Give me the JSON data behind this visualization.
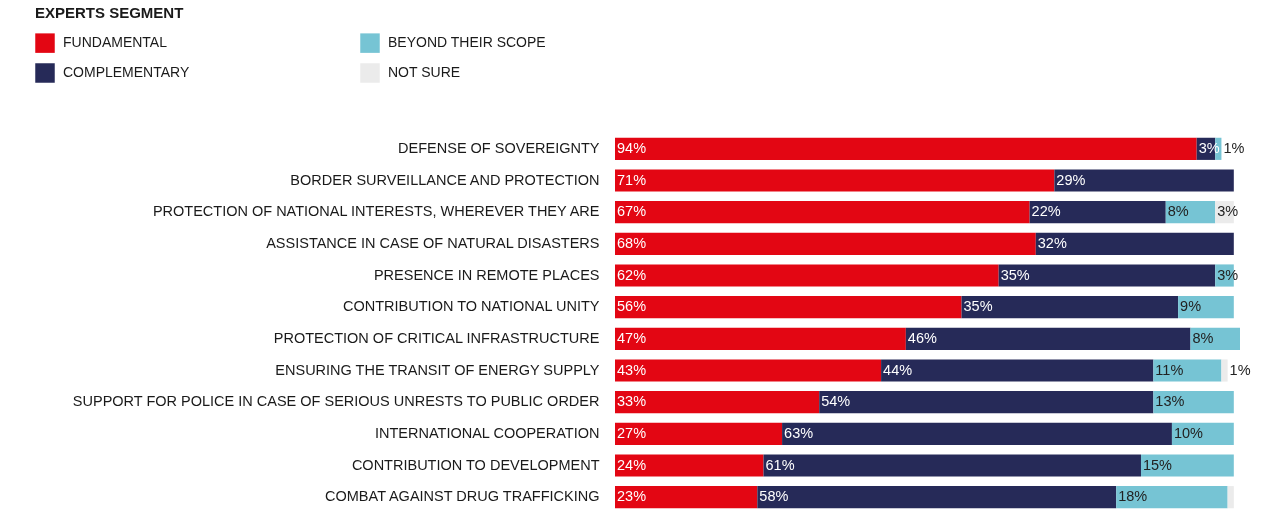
{
  "chart_data": {
    "type": "bar",
    "orientation": "horizontal",
    "stacked": true,
    "legend_title": "EXPERTS SEGMENT",
    "legend": "top left",
    "categories": [
      "DEFENSE OF SOVEREIGNTY",
      "BORDER SURVEILLANCE AND PROTECTION",
      "PROTECTION OF NATIONAL INTERESTS, WHEREVER THEY ARE",
      "ASSISTANCE IN CASE OF NATURAL DISASTERS",
      "PRESENCE IN REMOTE PLACES",
      "CONTRIBUTION TO NATIONAL UNITY",
      "PROTECTION OF CRITICAL INFRASTRUCTURE",
      "ENSURING THE TRANSIT OF ENERGY SUPPLY",
      "SUPPORT FOR POLICE IN CASE OF SERIOUS UNRESTS TO PUBLIC ORDER",
      "INTERNATIONAL COOPERATION",
      "CONTRIBUTION TO DEVELOPMENT",
      "COMBAT AGAINST DRUG TRAFFICKING"
    ],
    "series": [
      {
        "name": "FUNDAMENTAL",
        "color": "#e30613",
        "values": [
          94,
          71,
          67,
          68,
          62,
          56,
          47,
          43,
          33,
          27,
          24,
          23
        ],
        "value_labels": [
          "94%",
          "71%",
          "67%",
          "68%",
          "62%",
          "56%",
          "47%",
          "43%",
          "33%",
          "27%",
          "24%",
          "23%"
        ]
      },
      {
        "name": "COMPLEMENTARY",
        "color": "#262a58",
        "values": [
          3,
          29,
          22,
          32,
          35,
          35,
          46,
          44,
          54,
          63,
          61,
          58
        ],
        "value_labels": [
          "3%",
          "29%",
          "22%",
          "32%",
          "35%",
          "35%",
          "46%",
          "44%",
          "54%",
          "63%",
          "61%",
          "58%"
        ]
      },
      {
        "name": "BEYOND THEIR SCOPE",
        "color": "#76c4d4",
        "values": [
          1,
          null,
          8,
          null,
          3,
          9,
          8,
          11,
          13,
          10,
          15,
          18
        ],
        "value_labels": [
          "1%",
          null,
          "8%",
          null,
          "3%",
          "9%",
          "8%",
          "11%",
          "13%",
          "10%",
          "15%",
          "18%"
        ]
      },
      {
        "name": "NOT SURE",
        "color": "#ebebeb",
        "values": [
          null,
          null,
          3,
          null,
          null,
          null,
          null,
          1,
          null,
          null,
          null,
          1
        ],
        "value_labels": [
          null,
          null,
          "3%",
          null,
          null,
          null,
          null,
          "1%",
          null,
          null,
          null,
          null
        ]
      }
    ]
  }
}
